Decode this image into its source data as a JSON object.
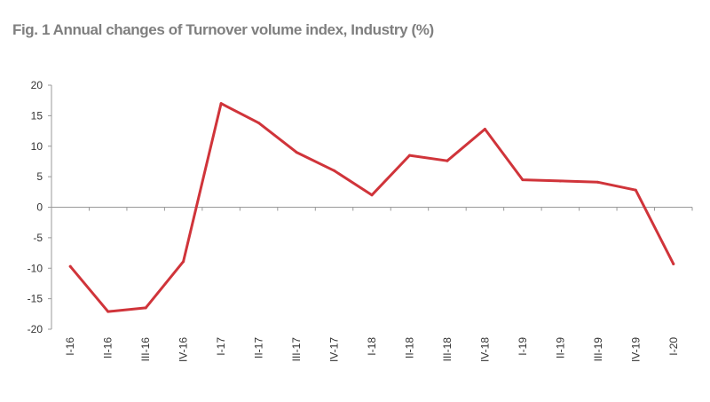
{
  "chart_data": {
    "type": "line",
    "title": "Fig. 1 Annual changes of Turnover volume index, Industry (%)",
    "xlabel": "",
    "ylabel": "",
    "categories": [
      "I-16",
      "II-16",
      "III-16",
      "IV-16",
      "I-17",
      "II-17",
      "III-17",
      "IV-17",
      "I-18",
      "II-18",
      "III-18",
      "IV-18",
      "I-19",
      "II-19",
      "III-19",
      "IV-19",
      "I-20"
    ],
    "series": [
      {
        "values": [
          -9.7,
          -17.1,
          -16.5,
          -8.9,
          17.0,
          13.8,
          9.0,
          6.0,
          2.0,
          8.5,
          7.6,
          12.8,
          4.5,
          4.3,
          4.1,
          2.8,
          -9.3
        ],
        "color": "#d0343a"
      }
    ],
    "ylim": [
      -20,
      20
    ],
    "yticks": [
      "20",
      "15",
      "10",
      "5",
      "0",
      "-5",
      "-10",
      "-15",
      "-20"
    ],
    "grid": false,
    "legend": "none"
  }
}
